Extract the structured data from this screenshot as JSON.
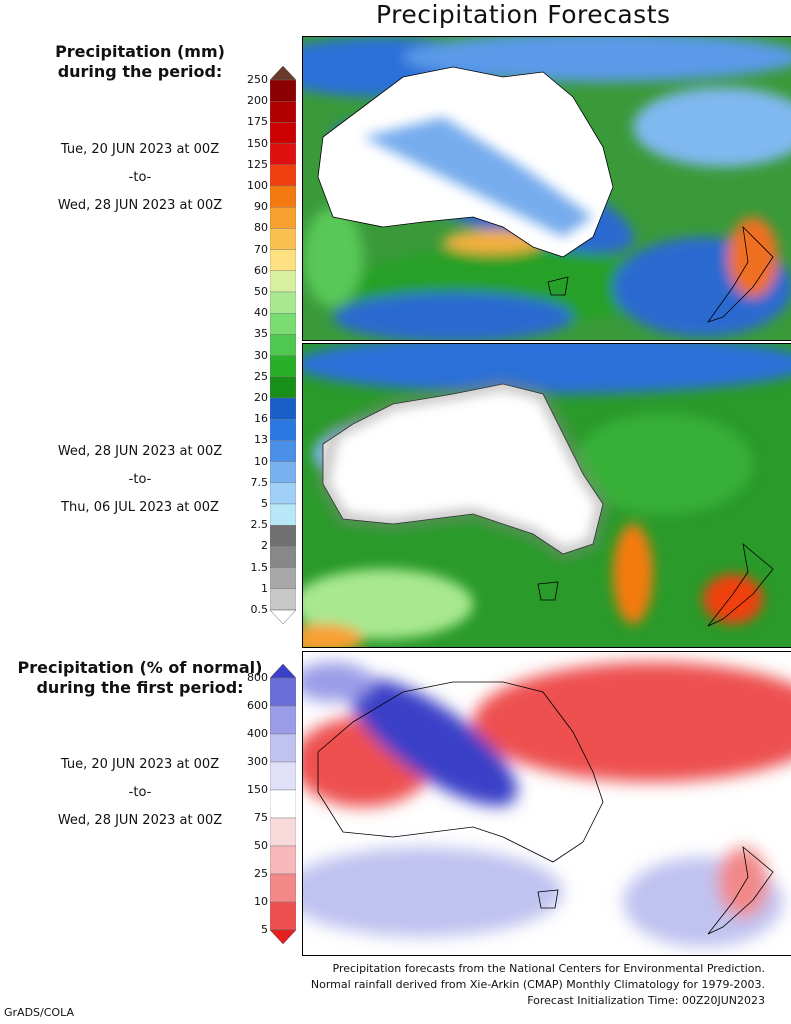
{
  "title": "Precipitation Forecasts",
  "header_mm": "Precipitation (mm)",
  "header_mm2": "during the period:",
  "header_pct": "Precipitation (% of normal)",
  "header_pct2": "during the first period:",
  "period1": {
    "start": "Tue, 20 JUN 2023 at 00Z",
    "sep": "-to-",
    "end": "Wed, 28 JUN 2023 at 00Z"
  },
  "period2": {
    "start": "Wed, 28 JUN 2023 at 00Z",
    "sep": "-to-",
    "end": "Thu, 06 JUL 2023 at 00Z"
  },
  "period3": {
    "start": "Tue, 20 JUN 2023 at 00Z",
    "sep": "-to-",
    "end": "Wed, 28 JUN 2023 at 00Z"
  },
  "mm_scale": {
    "labels": [
      "250",
      "200",
      "175",
      "150",
      "125",
      "100",
      "90",
      "80",
      "70",
      "60",
      "50",
      "40",
      "35",
      "30",
      "25",
      "20",
      "16",
      "13",
      "10",
      "7.5",
      "5",
      "2.5",
      "2",
      "1.5",
      "1",
      "0.5"
    ],
    "colors": [
      "#6b3a2a",
      "#8b0000",
      "#b20000",
      "#cc0000",
      "#e01010",
      "#f04010",
      "#f47a10",
      "#f7a030",
      "#fac050",
      "#fde080",
      "#d8f0a0",
      "#a8e890",
      "#78dc70",
      "#50c850",
      "#28b028",
      "#189018",
      "#1a5fc8",
      "#2a78e0",
      "#4a90e8",
      "#78b0f0",
      "#a0d0f8",
      "#b8e8f8",
      "#707070",
      "#888888",
      "#a8a8a8",
      "#c8c8c8",
      "#ffffff"
    ]
  },
  "pct_scale": {
    "labels": [
      "800",
      "600",
      "400",
      "300",
      "150",
      "75",
      "50",
      "25",
      "10",
      "5"
    ],
    "colors": [
      "#3a40c8",
      "#6a6ed8",
      "#9a9ce8",
      "#c0c2f0",
      "#e0e1f8",
      "#ffffff",
      "#f8dada",
      "#f6b8b8",
      "#f28888",
      "#ee5050",
      "#e62020"
    ]
  },
  "footer": {
    "line1": "Precipitation forecasts from the National Centers for Environmental Prediction.",
    "line2": "Normal rainfall derived from Xie-Arkin (CMAP) Monthly Climatology for 1979-2003.",
    "line3": "Forecast Initialization Time: 00Z20JUN2023"
  },
  "credit": "GrADS/COLA"
}
